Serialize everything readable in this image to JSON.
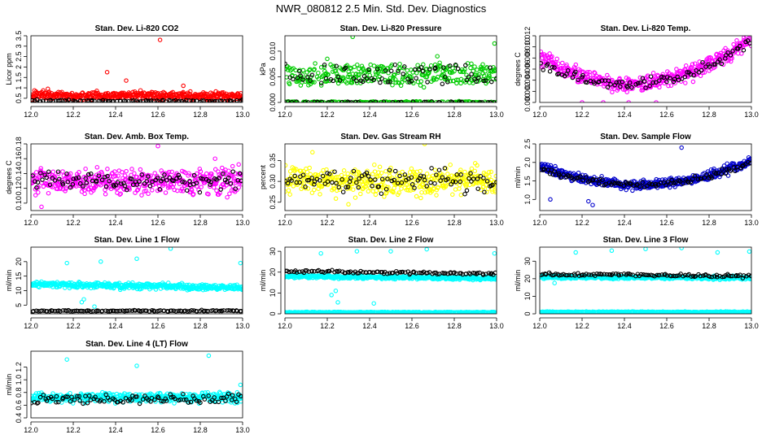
{
  "page": {
    "title": "NWR_080812  2.5 Min. Std. Dev. Diagnostics"
  },
  "chart_data": [
    {
      "type": "scatter",
      "title": "Stan. Dev. Li-820 CO2",
      "xlabel": "",
      "ylabel": "Licor ppm",
      "xlim": [
        12.0,
        13.0
      ],
      "ylim": [
        0.3,
        3.5
      ],
      "xticks": [
        12.0,
        12.2,
        12.4,
        12.6,
        12.8,
        13.0
      ],
      "xtick_labels": [
        "12.0",
        "12.2",
        "12.4",
        "12.6",
        "12.8",
        "13.0"
      ],
      "yticks": [
        0.5,
        1.0,
        1.5,
        2.0,
        2.5,
        3.0,
        3.5
      ],
      "ytick_labels": [
        "0.5",
        "1",
        "1.5",
        "2",
        "2.5",
        "3",
        "3.5"
      ],
      "series": [
        {
          "name": "main",
          "color": "#ff0000",
          "count": 420,
          "shape": "line",
          "start": 0.65,
          "end": 0.6,
          "noise": 0.22,
          "min": 0.35,
          "outliers": [
            [
              12.61,
              3.3
            ],
            [
              12.36,
              1.75
            ],
            [
              12.08,
              0.95
            ],
            [
              12.45,
              1.35
            ],
            [
              12.72,
              1.1
            ]
          ]
        },
        {
          "name": "overlay",
          "color": "#000000",
          "count": 90,
          "shape": "line",
          "start": 0.38,
          "end": 0.36,
          "noise": 0.05,
          "min": 0.3,
          "outliers": [
            [
              13.0,
              0.45
            ]
          ]
        }
      ]
    },
    {
      "type": "scatter",
      "title": "Stan. Dev. Li-820 Pressure",
      "xlabel": "",
      "ylabel": "kPa",
      "xlim": [
        12.0,
        13.0
      ],
      "ylim": [
        0.0,
        0.013
      ],
      "xticks": [
        12.0,
        12.2,
        12.4,
        12.6,
        12.8,
        13.0
      ],
      "xtick_labels": [
        "12.0",
        "12.2",
        "12.4",
        "12.6",
        "12.8",
        "13.0"
      ],
      "yticks": [
        0.0,
        0.005,
        0.01
      ],
      "ytick_labels": [
        "0.000",
        "0.005",
        "0.010"
      ],
      "series": [
        {
          "name": "main",
          "color": "#00cc00",
          "count": 460,
          "shape": "bands",
          "levels": [
            0.0,
            0.0045,
            0.0065
          ],
          "noise": 0.0012,
          "min": 0.0,
          "outliers": [
            [
              12.32,
              0.0128
            ],
            [
              12.99,
              0.0115
            ],
            [
              12.2,
              0.0085
            ],
            [
              12.72,
              0.009
            ]
          ]
        },
        {
          "name": "overlay",
          "color": "#000000",
          "count": 110,
          "shape": "bands",
          "levels": [
            0.0,
            0.0045,
            0.0065
          ],
          "noise": 0.0012,
          "min": 0.0,
          "outliers": [
            [
              12.97,
              0.0068
            ]
          ]
        }
      ]
    },
    {
      "type": "scatter",
      "title": "Stan. Dev. Li-820 Temp.",
      "xlabel": "",
      "ylabel": "degrees C",
      "xlim": [
        12.0,
        13.0
      ],
      "ylim": [
        0.0,
        0.012
      ],
      "xticks": [
        12.0,
        12.2,
        12.4,
        12.6,
        12.8,
        13.0
      ],
      "xtick_labels": [
        "12.0",
        "12.2",
        "12.4",
        "12.6",
        "12.8",
        "13.0"
      ],
      "yticks": [
        0.0,
        0.002,
        0.004,
        0.006,
        0.008,
        0.01,
        0.012
      ],
      "ytick_labels": [
        "0.000",
        "0.002",
        "0.004",
        "0.006",
        "0.008",
        "0.010",
        "0.012"
      ],
      "series": [
        {
          "name": "main",
          "color": "#ff00ff",
          "count": 430,
          "shape": "ushape",
          "left": 0.008,
          "bottom": 0.0035,
          "right": 0.0115,
          "noise": 0.0015,
          "min": 0.0,
          "outliers": [
            [
              12.2,
              0.0
            ],
            [
              12.3,
              0.0
            ],
            [
              12.42,
              0.0
            ],
            [
              12.55,
              0.0
            ]
          ]
        },
        {
          "name": "overlay",
          "color": "#000000",
          "count": 90,
          "shape": "ushape",
          "left": 0.007,
          "bottom": 0.0035,
          "right": 0.011,
          "noise": 0.001,
          "min": 0.0,
          "outliers": []
        }
      ]
    },
    {
      "type": "scatter",
      "title": "Stan. Dev. Amb. Box Temp.",
      "xlabel": "",
      "ylabel": "degrees C",
      "xlim": [
        12.0,
        13.0
      ],
      "ylim": [
        0.09,
        0.18
      ],
      "xticks": [
        12.0,
        12.2,
        12.4,
        12.6,
        12.8,
        13.0
      ],
      "xtick_labels": [
        "12.0",
        "12.2",
        "12.4",
        "12.6",
        "12.8",
        "13.0"
      ],
      "yticks": [
        0.1,
        0.12,
        0.14,
        0.16,
        0.18
      ],
      "ytick_labels": [
        "0.10",
        "0.12",
        "0.14",
        "0.16",
        "0.18"
      ],
      "series": [
        {
          "name": "main",
          "color": "#ff00ff",
          "count": 430,
          "shape": "line",
          "start": 0.13,
          "end": 0.13,
          "noise": 0.018,
          "min": 0.09,
          "outliers": [
            [
              12.6,
              0.177
            ],
            [
              12.05,
              0.095
            ],
            [
              12.87,
              0.16
            ]
          ]
        },
        {
          "name": "overlay",
          "color": "#000000",
          "count": 100,
          "shape": "line",
          "start": 0.13,
          "end": 0.13,
          "noise": 0.013,
          "min": 0.09,
          "outliers": []
        }
      ]
    },
    {
      "type": "scatter",
      "title": "Stan. Dev. Gas Stream RH",
      "xlabel": "",
      "ylabel": "percent",
      "xlim": [
        12.0,
        13.0
      ],
      "ylim": [
        0.23,
        0.39
      ],
      "xticks": [
        12.0,
        12.2,
        12.4,
        12.6,
        12.8,
        13.0
      ],
      "xtick_labels": [
        "12.0",
        "12.2",
        "12.4",
        "12.6",
        "12.8",
        "13.0"
      ],
      "yticks": [
        0.25,
        0.3,
        0.35
      ],
      "ytick_labels": [
        "0.25",
        "0.30",
        "0.35"
      ],
      "series": [
        {
          "name": "main",
          "color": "#ffff00",
          "count": 430,
          "shape": "line",
          "start": 0.3,
          "end": 0.3,
          "noise": 0.035,
          "min": 0.23,
          "outliers": [
            [
              12.13,
              0.37
            ],
            [
              12.66,
              0.39
            ],
            [
              12.3,
              0.245
            ]
          ]
        },
        {
          "name": "overlay",
          "color": "#000000",
          "count": 100,
          "shape": "line",
          "start": 0.3,
          "end": 0.3,
          "noise": 0.03,
          "min": 0.23,
          "outliers": []
        }
      ]
    },
    {
      "type": "scatter",
      "title": "Stan. Dev. Sample Flow",
      "xlabel": "",
      "ylabel": "ml/min",
      "xlim": [
        12.0,
        13.0
      ],
      "ylim": [
        0.7,
        2.5
      ],
      "xticks": [
        12.0,
        12.2,
        12.4,
        12.6,
        12.8,
        13.0
      ],
      "xtick_labels": [
        "12.0",
        "12.2",
        "12.4",
        "12.6",
        "12.8",
        "13.0"
      ],
      "yticks": [
        1.0,
        1.5,
        2.0,
        2.5
      ],
      "ytick_labels": [
        "1.0",
        "1.5",
        "2.0",
        "2.5"
      ],
      "series": [
        {
          "name": "main",
          "color": "#0000cc",
          "count": 450,
          "shape": "ushape",
          "left": 1.9,
          "bottom": 1.4,
          "right": 2.05,
          "noise": 0.14,
          "min": 0.7,
          "outliers": [
            [
              12.67,
              2.4
            ],
            [
              12.25,
              0.85
            ],
            [
              12.23,
              0.95
            ],
            [
              12.05,
              1.0
            ]
          ]
        },
        {
          "name": "overlay",
          "color": "#000000",
          "count": 100,
          "shape": "ushape",
          "left": 1.85,
          "bottom": 1.4,
          "right": 2.0,
          "noise": 0.08,
          "min": 0.7,
          "outliers": []
        }
      ]
    },
    {
      "type": "scatter",
      "title": "Stan. Dev. Line 1 Flow",
      "xlabel": "",
      "ylabel": "ml/min",
      "xlim": [
        12.0,
        13.0
      ],
      "ylim": [
        2.0,
        25.0
      ],
      "xticks": [
        12.0,
        12.2,
        12.4,
        12.6,
        12.8,
        13.0
      ],
      "xtick_labels": [
        "12.0",
        "12.2",
        "12.4",
        "12.6",
        "12.8",
        "13.0"
      ],
      "yticks": [
        5,
        10,
        15,
        20
      ],
      "ytick_labels": [
        "5",
        "10",
        "15",
        "20"
      ],
      "series": [
        {
          "name": "main",
          "color": "#00ffff",
          "count": 450,
          "shape": "line",
          "start": 12.2,
          "end": 11.0,
          "noise": 1.1,
          "min": 2.0,
          "outliers": [
            [
              12.17,
              19.5
            ],
            [
              12.33,
              20.0
            ],
            [
              12.5,
              21.0
            ],
            [
              12.66,
              24.5
            ],
            [
              12.99,
              19.5
            ],
            [
              12.25,
              7.0
            ],
            [
              12.24,
              6.0
            ],
            [
              12.3,
              4.5
            ]
          ]
        },
        {
          "name": "overlay",
          "color": "#000000",
          "count": 110,
          "shape": "line",
          "start": 3.0,
          "end": 3.0,
          "noise": 0.25,
          "min": 2.0,
          "outliers": []
        }
      ]
    },
    {
      "type": "scatter",
      "title": "Stan. Dev. Line 2 Flow",
      "xlabel": "",
      "ylabel": "ml/min",
      "xlim": [
        12.0,
        13.0
      ],
      "ylim": [
        0.0,
        32.0
      ],
      "xticks": [
        12.0,
        12.2,
        12.4,
        12.6,
        12.8,
        13.0
      ],
      "xtick_labels": [
        "12.0",
        "12.2",
        "12.4",
        "12.6",
        "12.8",
        "13.0"
      ],
      "yticks": [
        0,
        10,
        20,
        30
      ],
      "ytick_labels": [
        "0",
        "10",
        "20",
        "30"
      ],
      "series": [
        {
          "name": "main",
          "color": "#00ffff",
          "count": 420,
          "shape": "line",
          "start": 18.0,
          "end": 17.0,
          "noise": 0.9,
          "min": 0.0,
          "outliers": [
            [
              12.17,
              29.0
            ],
            [
              12.34,
              30.0
            ],
            [
              12.5,
              30.0
            ],
            [
              12.67,
              31.0
            ],
            [
              12.99,
              29.0
            ],
            [
              12.24,
              11.0
            ],
            [
              12.22,
              9.0
            ],
            [
              12.25,
              5.5
            ],
            [
              12.42,
              5.0
            ]
          ]
        },
        {
          "name": "base",
          "color": "#00ffff",
          "count": 300,
          "shape": "line",
          "start": 0.7,
          "end": 0.7,
          "noise": 0.25,
          "min": 0.0,
          "outliers": []
        },
        {
          "name": "overlay",
          "color": "#000000",
          "count": 110,
          "shape": "line",
          "start": 20.5,
          "end": 19.0,
          "noise": 0.8,
          "min": 0.0,
          "outliers": []
        }
      ]
    },
    {
      "type": "scatter",
      "title": "Stan. Dev. Line 3 Flow",
      "xlabel": "",
      "ylabel": "ml/min",
      "xlim": [
        12.0,
        13.0
      ],
      "ylim": [
        0.0,
        38.0
      ],
      "xticks": [
        12.0,
        12.2,
        12.4,
        12.6,
        12.8,
        13.0
      ],
      "xtick_labels": [
        "12.0",
        "12.2",
        "12.4",
        "12.6",
        "12.8",
        "13.0"
      ],
      "yticks": [
        0,
        10,
        20,
        30
      ],
      "ytick_labels": [
        "0",
        "10",
        "20",
        "30"
      ],
      "series": [
        {
          "name": "main",
          "color": "#00ffff",
          "count": 420,
          "shape": "line",
          "start": 21.0,
          "end": 20.5,
          "noise": 1.0,
          "min": 0.0,
          "outliers": [
            [
              12.17,
              35.0
            ],
            [
              12.34,
              36.0
            ],
            [
              12.5,
              37.0
            ],
            [
              12.67,
              37.5
            ],
            [
              12.84,
              35.0
            ],
            [
              12.99,
              35.5
            ],
            [
              12.07,
              17.5
            ]
          ]
        },
        {
          "name": "base",
          "color": "#00ffff",
          "count": 300,
          "shape": "line",
          "start": 1.0,
          "end": 1.0,
          "noise": 0.3,
          "min": 0.0,
          "outliers": []
        },
        {
          "name": "overlay",
          "color": "#000000",
          "count": 110,
          "shape": "line",
          "start": 22.5,
          "end": 21.5,
          "noise": 0.9,
          "min": 0.0,
          "outliers": []
        }
      ]
    },
    {
      "type": "scatter",
      "title": "Stan. Dev. Line 4 (LT) Flow",
      "xlabel": "",
      "ylabel": "ml/min",
      "xlim": [
        12.0,
        13.0
      ],
      "ylim": [
        0.4,
        1.45
      ],
      "xticks": [
        12.0,
        12.2,
        12.4,
        12.6,
        12.8,
        13.0
      ],
      "xtick_labels": [
        "12.0",
        "12.2",
        "12.4",
        "12.6",
        "12.8",
        "13.0"
      ],
      "yticks": [
        0.4,
        0.6,
        0.8,
        1.0,
        1.2
      ],
      "ytick_labels": [
        "0.4",
        "0.6",
        "0.8",
        "1.0",
        "1.2"
      ],
      "series": [
        {
          "name": "main",
          "color": "#00ffff",
          "count": 430,
          "shape": "line",
          "start": 0.72,
          "end": 0.72,
          "noise": 0.08,
          "min": 0.4,
          "outliers": [
            [
              12.17,
              1.32
            ],
            [
              12.5,
              1.22
            ],
            [
              12.84,
              1.38
            ],
            [
              12.99,
              0.92
            ]
          ]
        },
        {
          "name": "overlay",
          "color": "#000000",
          "count": 100,
          "shape": "line",
          "start": 0.7,
          "end": 0.7,
          "noise": 0.09,
          "min": 0.4,
          "outliers": []
        }
      ]
    }
  ]
}
